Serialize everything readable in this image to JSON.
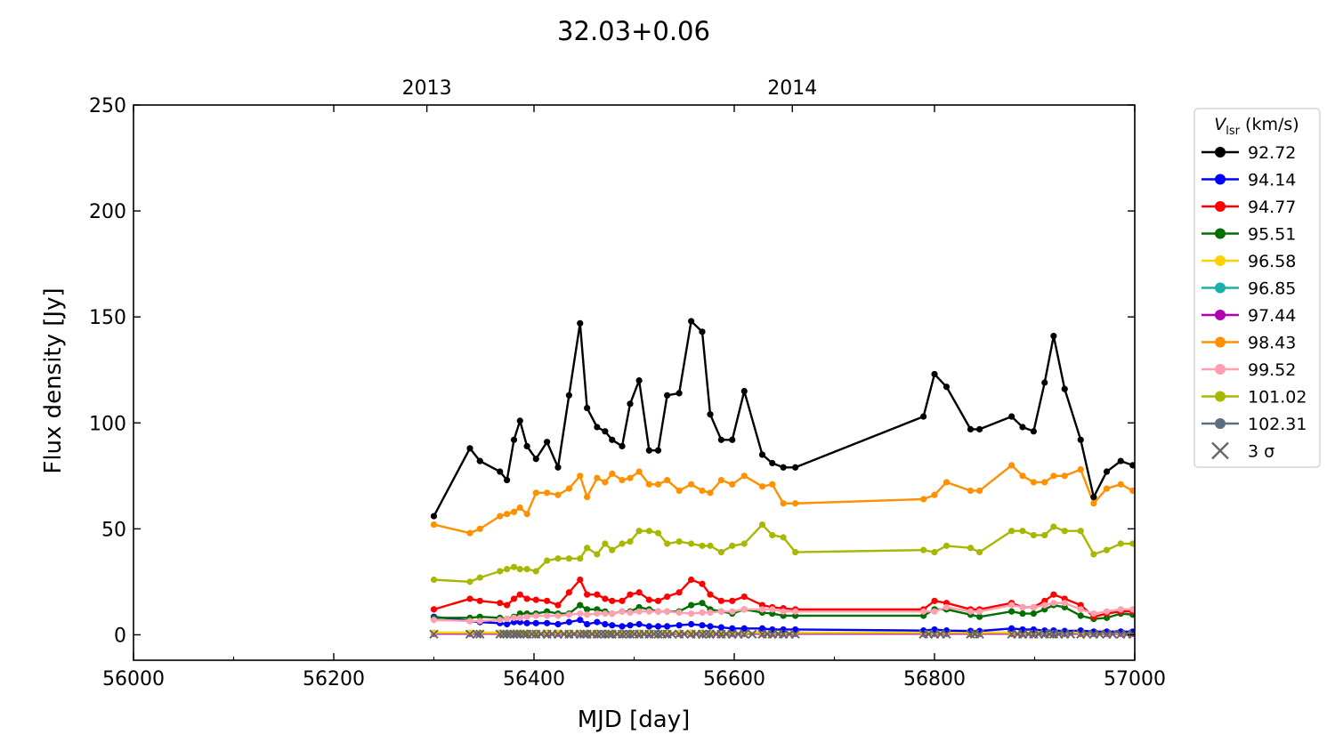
{
  "chart_data": {
    "type": "line",
    "title": "32.03+0.06",
    "xlabel": "MJD [day]",
    "ylabel": "Flux density [Jy]",
    "xlim": [
      56000,
      57000
    ],
    "ylim": [
      -12,
      250
    ],
    "xticks": [
      56000,
      56200,
      56400,
      56600,
      56800,
      57000
    ],
    "yticks": [
      0,
      50,
      100,
      150,
      200,
      250
    ],
    "top_axis": {
      "ticks": [
        {
          "x": 56293,
          "label": "2013"
        },
        {
          "x": 56658,
          "label": "2014"
        }
      ]
    },
    "legend": {
      "title": "V_lsr (km/s)",
      "title_main": "V",
      "title_sub": "lsr",
      "title_rest": " (km/s)",
      "location": "upper-right-outside",
      "sigma_label": "3 σ"
    },
    "grid": false,
    "x": [
      56300,
      56336,
      56346,
      56366,
      56373,
      56380,
      56386,
      56393,
      56402,
      56413,
      56424,
      56435,
      56446,
      56453,
      56463,
      56471,
      56478,
      56488,
      56496,
      56505,
      56515,
      56524,
      56533,
      56545,
      56557,
      56568,
      56576,
      56587,
      56598,
      56610,
      56628,
      56638,
      56649,
      56661,
      56789,
      56800,
      56812,
      56836,
      56845,
      56877,
      56888,
      56899,
      56910,
      56919,
      56930,
      56946,
      56959,
      56972,
      56986,
      56998
    ],
    "series": [
      {
        "name": "92.72",
        "color": "#000000",
        "values": [
          56,
          88,
          82,
          77,
          73,
          92,
          101,
          89,
          83,
          91,
          79,
          113,
          147,
          107,
          98,
          96,
          92,
          89,
          109,
          120,
          87,
          87,
          113,
          114,
          148,
          143,
          104,
          92,
          92,
          115,
          85,
          81,
          79,
          79,
          103,
          123,
          117,
          97,
          97,
          103,
          98,
          96,
          119,
          141,
          116,
          92,
          65,
          77,
          82,
          80
        ]
      },
      {
        "name": "94.14",
        "color": "#0000ff",
        "values": [
          8.5,
          6.5,
          6,
          5.5,
          5,
          6,
          6,
          5.5,
          5.5,
          5.5,
          5,
          6,
          7,
          5,
          6,
          5,
          4.5,
          4,
          4.5,
          5,
          4,
          4,
          4,
          4.5,
          5,
          4.5,
          4,
          3.5,
          3,
          3,
          3,
          2.5,
          2.5,
          2.5,
          2,
          2.5,
          2,
          1.8,
          1.8,
          3,
          2.5,
          2.5,
          2,
          2,
          1.8,
          2,
          1.5,
          1.5,
          1.5,
          1.5
        ]
      },
      {
        "name": "94.77",
        "color": "#ff0000",
        "values": [
          12,
          17,
          16,
          15,
          14,
          17,
          19,
          17,
          16.5,
          16,
          14,
          20,
          26,
          19,
          19,
          17,
          16,
          16,
          19,
          20,
          16.5,
          16,
          18,
          20,
          26,
          24,
          19,
          16,
          16,
          18,
          14,
          13,
          12.5,
          12,
          12,
          16,
          15,
          12,
          12,
          15,
          13,
          13,
          16,
          19,
          17,
          14,
          8.5,
          10,
          11,
          11
        ]
      },
      {
        "name": "95.51",
        "color": "#007000",
        "values": [
          8,
          8,
          8.5,
          8,
          7.5,
          8.5,
          10,
          10,
          10,
          11,
          10,
          10,
          14,
          12,
          12,
          11,
          10,
          11,
          11,
          13,
          12,
          11,
          11,
          11,
          14,
          15,
          12,
          11,
          10,
          12,
          10.5,
          10,
          9,
          9,
          9,
          12,
          12,
          9.5,
          8.5,
          11,
          10,
          10,
          12,
          14,
          13,
          9,
          7.5,
          8,
          10,
          9.5
        ]
      },
      {
        "name": "96.58",
        "color": "#ffd000",
        "values": [
          1,
          1,
          1,
          1,
          1,
          1,
          1,
          1,
          1,
          1,
          1,
          1,
          1,
          1,
          1,
          1,
          1,
          1,
          1,
          1,
          1,
          1,
          1,
          1,
          1,
          1,
          1,
          1,
          1,
          1,
          1,
          1,
          1,
          1,
          1,
          1,
          1,
          1,
          1,
          1,
          1,
          1,
          1.3,
          1.5,
          1.3,
          1,
          1,
          1,
          1,
          1
        ]
      },
      {
        "name": "96.85",
        "color": "#17b0aa",
        "values": [
          1,
          1,
          1,
          1,
          1,
          1,
          1,
          1,
          1,
          1,
          1,
          1,
          1,
          1,
          1,
          1,
          1,
          1,
          1,
          1,
          1,
          1,
          1,
          1,
          1,
          1,
          1,
          1,
          1,
          1,
          1,
          1,
          1,
          1,
          1,
          1,
          1,
          1,
          1,
          1,
          1,
          1,
          1,
          1,
          1,
          1,
          1,
          1,
          1,
          1
        ]
      },
      {
        "name": "97.44",
        "color": "#b000b0",
        "values": [
          0.5,
          0.5,
          0.5,
          0.5,
          0.5,
          0.5,
          0.5,
          0.5,
          0.5,
          0.5,
          0.5,
          0.5,
          0.5,
          0.5,
          0.5,
          0.5,
          0.5,
          0.5,
          0.5,
          0.5,
          0.5,
          0.5,
          0.5,
          0.5,
          0.5,
          0.5,
          0.5,
          0.5,
          0.5,
          0.5,
          0.5,
          0.5,
          0.5,
          0.5,
          0.5,
          0.5,
          0.5,
          0.5,
          0.5,
          0.5,
          0.5,
          0.5,
          0.5,
          0.5,
          0.5,
          0.5,
          0.5,
          0.5,
          0.5,
          0.5
        ]
      },
      {
        "name": "98.43",
        "color": "#ff9000",
        "values": [
          52,
          48,
          50,
          56,
          57,
          58,
          60,
          57,
          67,
          67,
          66,
          69,
          75,
          65,
          74,
          72,
          76,
          73,
          74,
          77,
          71,
          71,
          73,
          68,
          71,
          68,
          67,
          73,
          71,
          75,
          70,
          71,
          62,
          62,
          64,
          66,
          72,
          68,
          68,
          80,
          75,
          72,
          72,
          75,
          75,
          78,
          62,
          69,
          71,
          68
        ]
      },
      {
        "name": "99.52",
        "color": "#ffa0b0",
        "values": [
          7,
          6.5,
          6.5,
          7,
          7.5,
          8,
          8,
          8.5,
          9,
          9,
          9,
          9.5,
          10,
          9.5,
          10,
          10,
          10,
          11,
          10.5,
          11,
          11,
          11,
          11,
          10.5,
          10,
          10.5,
          10.5,
          11,
          11,
          12,
          12,
          12,
          11,
          11,
          11,
          11,
          13,
          11,
          11,
          14,
          13,
          13,
          14,
          15,
          15,
          12,
          10,
          11,
          12,
          12
        ]
      },
      {
        "name": "101.02",
        "color": "#a8b800",
        "values": [
          26,
          25,
          27,
          30,
          31,
          32,
          31,
          31,
          30,
          35,
          36,
          36,
          36,
          41,
          38,
          43,
          40,
          43,
          44,
          49,
          49,
          48,
          43,
          44,
          43,
          42,
          42,
          39,
          42,
          43,
          52,
          47,
          46,
          39,
          40,
          39,
          42,
          41,
          39,
          49,
          49,
          47,
          47,
          51,
          49,
          49,
          38,
          40,
          43,
          43
        ]
      },
      {
        "name": "102.31",
        "color": "#5a6e80",
        "values": [
          1,
          0.8,
          0.8,
          0.8,
          0.8,
          0.8,
          0.8,
          0.8,
          0.8,
          0.8,
          0.8,
          0.8,
          0.8,
          0.8,
          0.8,
          0.8,
          0.8,
          0.8,
          0.8,
          0.8,
          0.8,
          0.8,
          0.8,
          0.8,
          0.8,
          0.8,
          0.8,
          0.8,
          0.8,
          0.8,
          0.8,
          0.8,
          0.8,
          0.8,
          0.8,
          0.8,
          0.8,
          0.8,
          0.8,
          0.8,
          0.8,
          0.8,
          0.8,
          0.8,
          0.8,
          0.8,
          0.8,
          0.8,
          0.8,
          0.8
        ]
      }
    ],
    "upper_limits_3sigma": {
      "color": "#666666",
      "x": [
        56300,
        56336,
        56343,
        56346,
        56366,
        56370,
        56373,
        56376,
        56380,
        56383,
        56386,
        56390,
        56393,
        56398,
        56402,
        56407,
        56413,
        56418,
        56424,
        56430,
        56435,
        56440,
        56446,
        56450,
        56453,
        56458,
        56463,
        56467,
        56471,
        56475,
        56478,
        56483,
        56488,
        56492,
        56496,
        56500,
        56505,
        56510,
        56515,
        56520,
        56524,
        56528,
        56533,
        56538,
        56545,
        56550,
        56557,
        56562,
        56568,
        56572,
        56576,
        56582,
        56587,
        56592,
        56598,
        56604,
        56610,
        56618,
        56628,
        56633,
        56638,
        56644,
        56649,
        56655,
        56661,
        56789,
        56794,
        56800,
        56806,
        56812,
        56836,
        56840,
        56845,
        56877,
        56883,
        56888,
        56894,
        56899,
        56904,
        56910,
        56915,
        56919,
        56924,
        56930,
        56936,
        56946,
        56952,
        56959,
        56965,
        56972,
        56978,
        56986,
        56992,
        56998
      ],
      "y": 0.3
    }
  }
}
